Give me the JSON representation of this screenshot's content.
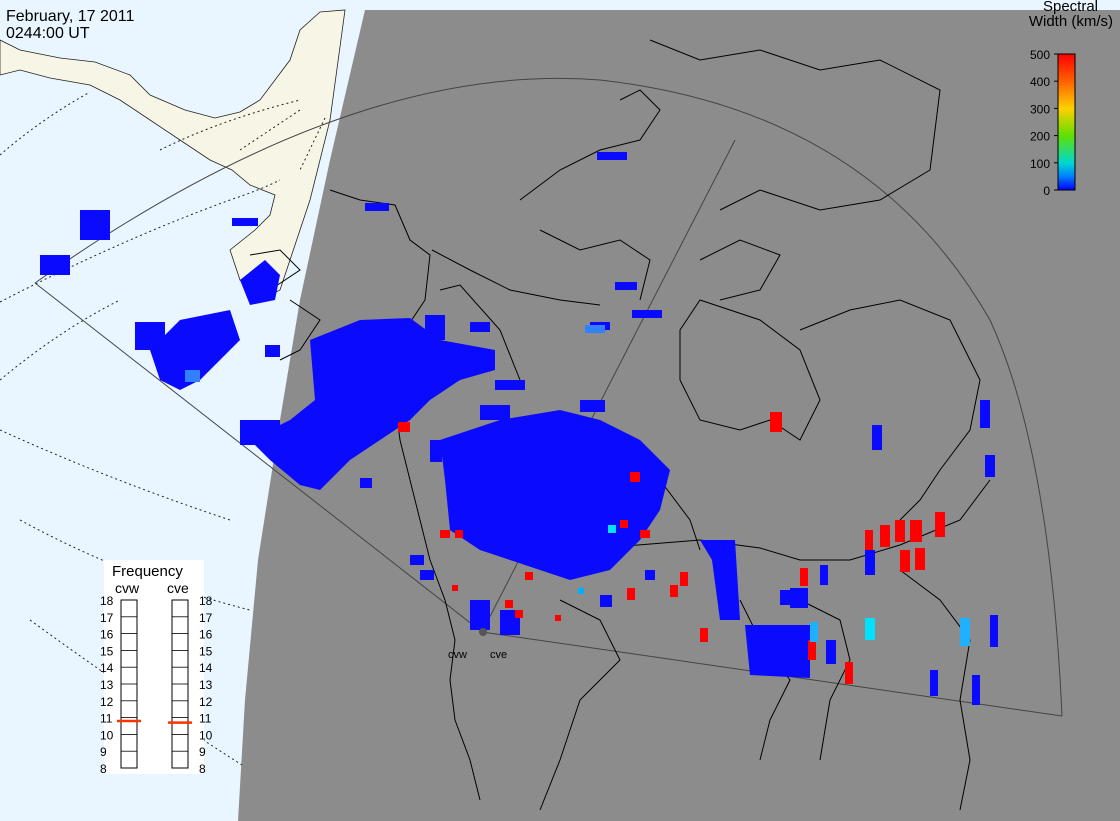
{
  "header": {
    "date": "February, 17 2011",
    "time": "0244:00 UT"
  },
  "colorbar": {
    "title_line1": "Spectral",
    "title_line2": "Width (km/s)",
    "ticks": [
      "500",
      "400",
      "300",
      "200",
      "100",
      "0"
    ],
    "colors": [
      "#ff0000",
      "#ff8000",
      "#ffd000",
      "#80ff00",
      "#00e0a0",
      "#00c8ff",
      "#0040ff",
      "#0000ff"
    ]
  },
  "frequency_panel": {
    "title": "Frequency",
    "radars": [
      {
        "name": "cvw",
        "value_mhz": 10.8
      },
      {
        "name": "cve",
        "value_mhz": 10.7
      }
    ],
    "scale": [
      "18",
      "17",
      "16",
      "15",
      "14",
      "13",
      "12",
      "11",
      "10",
      "9",
      "8"
    ]
  },
  "radar_sites": [
    {
      "name": "cvw"
    },
    {
      "name": "cve"
    }
  ],
  "colors": {
    "ocean": "#eaf6ff",
    "night": "#8c8c8c",
    "land_day": "#f7f5e6",
    "low_width": "#0a0aff",
    "high_width": "#ff0000"
  }
}
